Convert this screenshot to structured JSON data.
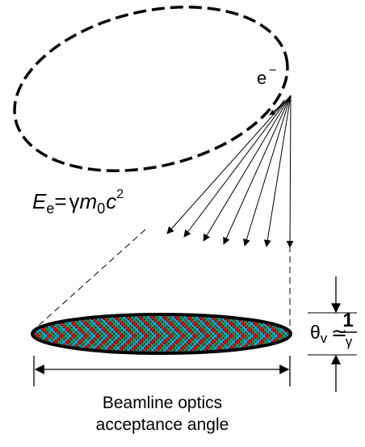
{
  "labels": {
    "electron": "e",
    "electron_sign": "−",
    "energy": {
      "symbol": "E",
      "subscript": "e",
      "equals": "=",
      "gamma": "γ",
      "mass": "m",
      "mass_subscript": "0",
      "c": "c",
      "power": "2"
    },
    "theta": {
      "symbol": "θ",
      "subscript": "v",
      "approx": "≃",
      "numerator": "1",
      "denominator": "γ"
    },
    "acceptance_line1": "Beamline optics",
    "acceptance_line2": "acceptance angle"
  },
  "colors": {
    "line": "#000000",
    "hatch": [
      "#ff0000",
      "#00a651",
      "#00aeef"
    ]
  }
}
